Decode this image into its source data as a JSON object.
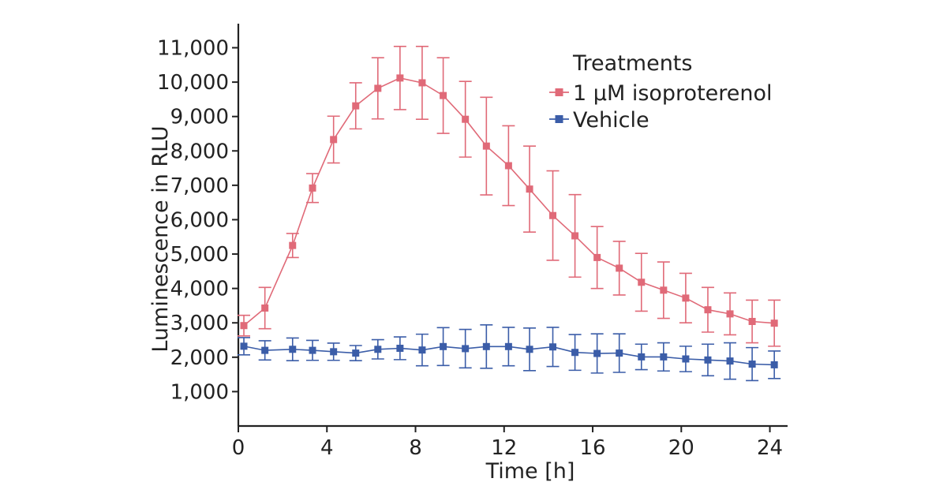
{
  "chart_data": {
    "type": "line",
    "title": "",
    "xlabel": "Time [h]",
    "ylabel": "Luminescence in RLU",
    "xlim": [
      0,
      24.8
    ],
    "ylim": [
      0,
      11700
    ],
    "x_ticks": [
      0,
      4,
      8,
      12,
      16,
      20,
      24
    ],
    "y_ticks": [
      1000,
      2000,
      3000,
      4000,
      5000,
      6000,
      7000,
      8000,
      9000,
      10000,
      11000
    ],
    "x_tick_labels": [
      "0",
      "4",
      "8",
      "12",
      "16",
      "20",
      "24"
    ],
    "y_tick_labels": [
      "1,000",
      "2,000",
      "3,000",
      "4,000",
      "5,000",
      "6,000",
      "7,000",
      "8,000",
      "9,000",
      "10,000",
      "11,000"
    ],
    "grid": false,
    "legend": {
      "title": "Treatments",
      "position": "top-right",
      "entries": [
        "1 µM isoproterenol",
        "Vehicle"
      ]
    },
    "series": [
      {
        "name": "1 µM isoproterenol",
        "color": "#e06a78",
        "marker": "square",
        "x": [
          0.25,
          1.2,
          2.45,
          3.35,
          4.3,
          5.3,
          6.3,
          7.3,
          8.3,
          9.25,
          10.25,
          11.2,
          12.2,
          13.15,
          14.2,
          15.2,
          16.2,
          17.2,
          18.2,
          19.2,
          20.2,
          21.2,
          22.2,
          23.2,
          24.2
        ],
        "y": [
          2920,
          3430,
          5250,
          6920,
          8330,
          9310,
          9820,
          10120,
          9980,
          9610,
          8920,
          8140,
          7570,
          6890,
          6120,
          5530,
          4900,
          4590,
          4180,
          3950,
          3720,
          3380,
          3260,
          3040,
          2990
        ],
        "error": [
          300,
          600,
          350,
          420,
          680,
          670,
          890,
          920,
          1060,
          1100,
          1100,
          1420,
          1160,
          1250,
          1300,
          1200,
          900,
          780,
          840,
          820,
          720,
          650,
          610,
          620,
          670
        ]
      },
      {
        "name": "Vehicle",
        "color": "#3b5da8",
        "marker": "square",
        "x": [
          0.25,
          1.2,
          2.45,
          3.35,
          4.3,
          5.3,
          6.3,
          7.3,
          8.3,
          9.25,
          10.25,
          11.2,
          12.2,
          13.15,
          14.2,
          15.2,
          16.2,
          17.2,
          18.2,
          19.2,
          20.2,
          21.2,
          22.2,
          23.2,
          24.2
        ],
        "y": [
          2320,
          2200,
          2230,
          2200,
          2160,
          2120,
          2230,
          2260,
          2210,
          2310,
          2250,
          2310,
          2310,
          2230,
          2300,
          2140,
          2110,
          2120,
          2010,
          2010,
          1950,
          1920,
          1890,
          1800,
          1780
        ],
        "error": [
          250,
          280,
          330,
          290,
          250,
          220,
          280,
          330,
          460,
          550,
          560,
          630,
          560,
          620,
          570,
          520,
          570,
          560,
          370,
          410,
          370,
          460,
          530,
          480,
          400
        ]
      }
    ]
  }
}
